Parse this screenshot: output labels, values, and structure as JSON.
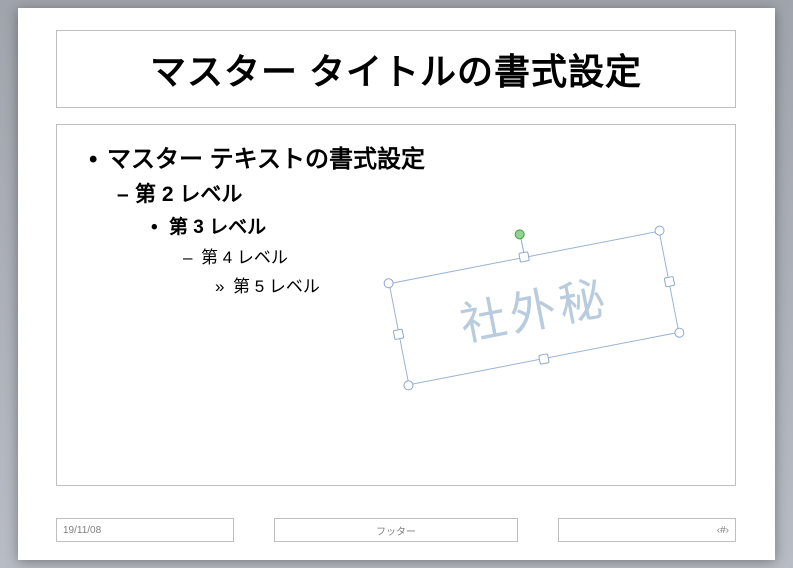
{
  "slide": {
    "title": "マスター タイトルの書式設定",
    "levels": {
      "l1": "マスター テキストの書式設定",
      "l2": "第 2 レベル",
      "l3": "第 3 レベル",
      "l4": "第 4 レベル",
      "l5": "第 5 レベル"
    },
    "bullets": {
      "b1": "•",
      "b2": "–",
      "b3": "•",
      "b4": "–",
      "b5": "»"
    }
  },
  "watermark": {
    "text": "社外秘",
    "color": "#b8ccde",
    "rotation_deg": -11,
    "fontsize": 46
  },
  "footer": {
    "date": "19/11/08",
    "center": "フッター",
    "pagenum": "‹#›"
  },
  "selection": {
    "border_color": "#9ab3d6",
    "handle_fill": "#ffffff",
    "handle_border": "#8fa8cc",
    "rotation_handle_fill": "#8fd48f",
    "rotation_handle_border": "#4a9a4a"
  },
  "colors": {
    "slide_bg": "#ffffff",
    "workspace_bg_top": "#a0a4ac",
    "workspace_bg_bottom": "#b8bcc4",
    "placeholder_border": "#bfbfbf",
    "footer_text": "#808080"
  }
}
